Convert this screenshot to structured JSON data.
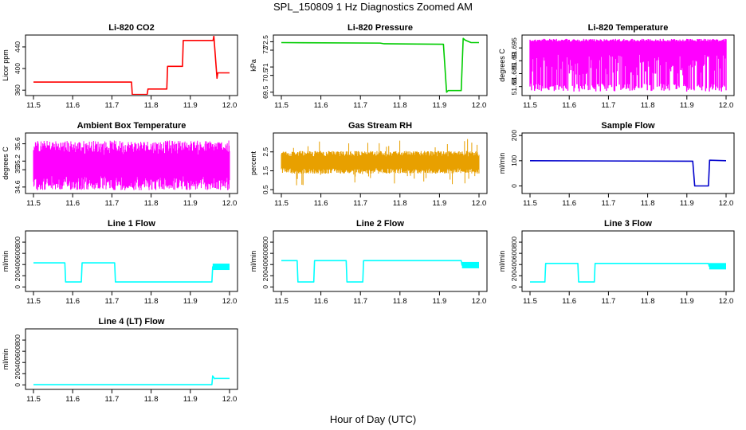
{
  "figure": {
    "title": "SPL_150809  1 Hz Diagnostics Zoomed AM",
    "xlabel": "Hour of Day (UTC)"
  },
  "chart_data": [
    {
      "type": "line",
      "title": "Li-820 CO2",
      "ylabel": "Licor ppm",
      "color": "#ff0000",
      "xlim": [
        11.5,
        12.0
      ],
      "ylim": [
        350,
        462
      ],
      "xticks": [
        "11.5",
        "11.6",
        "11.7",
        "11.8",
        "11.9",
        "12.0"
      ],
      "yticks": [
        360,
        400,
        440
      ],
      "series": [
        {
          "x": [
            11.5,
            11.75,
            11.752,
            11.79,
            11.792,
            11.84,
            11.842,
            11.88,
            11.882,
            11.958,
            11.96,
            11.968,
            11.97,
            12.0
          ],
          "y": [
            375,
            375,
            352,
            352,
            362,
            362,
            404,
            404,
            452,
            452,
            460,
            382,
            392,
            392
          ]
        }
      ]
    },
    {
      "type": "line",
      "title": "Li-820 Pressure",
      "ylabel": "kPa",
      "color": "#00cc00",
      "xlim": [
        11.5,
        12.0
      ],
      "ylim": [
        69.3,
        72.9
      ],
      "xticks": [
        "11.5",
        "11.6",
        "11.7",
        "11.8",
        "11.9",
        "12.0"
      ],
      "yticks": [
        69.5,
        70.5,
        71.0,
        72.0,
        72.5
      ],
      "series": [
        {
          "x": [
            11.5,
            11.75,
            11.76,
            11.91,
            11.918,
            11.922,
            11.955,
            11.96,
            11.965,
            11.98,
            12.0
          ],
          "y": [
            72.45,
            72.42,
            72.38,
            72.35,
            69.5,
            69.6,
            69.6,
            72.7,
            72.6,
            72.45,
            72.45
          ]
        }
      ]
    },
    {
      "type": "line",
      "title": "Li-820 Temperature",
      "ylabel": "degrees C",
      "color": "#ff00ff",
      "xlim": [
        11.5,
        12.0
      ],
      "ylim": [
        51.6765,
        51.7
      ],
      "xticks": [
        "11.5",
        "11.6",
        "11.7",
        "11.8",
        "11.9",
        "12.0"
      ],
      "yticks": [
        51.68,
        51.685,
        51.69,
        51.695
      ],
      "series": [
        {
          "x": [
            11.5,
            12.0
          ],
          "y": [
            51.678,
            51.6985
          ]
        }
      ]
    },
    {
      "type": "line",
      "title": "Ambient Box Temperature",
      "ylabel": "degrees C",
      "color": "#ff00ff",
      "xlim": [
        11.5,
        12.0
      ],
      "ylim": [
        34.45,
        35.85
      ],
      "xticks": [
        "11.5",
        "11.6",
        "11.7",
        "11.8",
        "11.9",
        "12.0"
      ],
      "yticks": [
        34.6,
        35.0,
        35.2,
        35.6
      ],
      "series": [
        {
          "x": [
            11.5,
            12.0
          ],
          "y": [
            34.5,
            35.7
          ]
        }
      ]
    },
    {
      "type": "line",
      "title": "Gas Stream RH",
      "ylabel": "percent",
      "color": "#e8a000",
      "xlim": [
        11.5,
        12.0
      ],
      "ylim": [
        0.3,
        3.5
      ],
      "xticks": [
        "11.5",
        "11.6",
        "11.7",
        "11.8",
        "11.9",
        "12.0"
      ],
      "yticks": [
        0.5,
        1.5,
        2.5
      ],
      "series": [
        {
          "x": [
            11.5,
            12.0
          ],
          "y": [
            0.7,
            3.2
          ]
        }
      ]
    },
    {
      "type": "line",
      "title": "Sample Flow",
      "ylabel": "ml/min",
      "color": "#0000cc",
      "xlim": [
        11.5,
        12.0
      ],
      "ylim": [
        -30,
        210
      ],
      "xticks": [
        "11.5",
        "11.6",
        "11.7",
        "11.8",
        "11.9",
        "12.0"
      ],
      "yticks": [
        0,
        100,
        200
      ],
      "series": [
        {
          "x": [
            11.5,
            11.915,
            11.92,
            11.955,
            11.958,
            12.0
          ],
          "y": [
            100,
            98,
            0,
            0,
            102,
            100
          ]
        }
      ]
    },
    {
      "type": "line",
      "title": "Line 1 Flow",
      "ylabel": "ml/min",
      "color": "#00ffff",
      "xlim": [
        11.5,
        12.0
      ],
      "ylim": [
        -80,
        1000
      ],
      "xticks": [
        "11.5",
        "11.6",
        "11.7",
        "11.8",
        "11.9",
        "12.0"
      ],
      "yticks": [
        0,
        200,
        400,
        600,
        800
      ],
      "series": [
        {
          "x": [
            11.5,
            11.58,
            11.582,
            11.622,
            11.624,
            11.707,
            11.709,
            11.955,
            11.957,
            12.0
          ],
          "y": [
            430,
            430,
            90,
            90,
            430,
            430,
            90,
            90,
            360,
            360
          ]
        }
      ]
    },
    {
      "type": "line",
      "title": "Line 2 Flow",
      "ylabel": "ml/min",
      "color": "#00ffff",
      "xlim": [
        11.5,
        12.0
      ],
      "ylim": [
        -80,
        1000
      ],
      "xticks": [
        "11.5",
        "11.6",
        "11.7",
        "11.8",
        "11.9",
        "12.0"
      ],
      "yticks": [
        0,
        200,
        400,
        600,
        800
      ],
      "series": [
        {
          "x": [
            11.5,
            11.54,
            11.542,
            11.582,
            11.584,
            11.664,
            11.666,
            11.706,
            11.708,
            11.955,
            11.957,
            12.0
          ],
          "y": [
            470,
            470,
            90,
            90,
            470,
            470,
            90,
            90,
            470,
            470,
            390,
            390
          ]
        }
      ]
    },
    {
      "type": "line",
      "title": "Line 3 Flow",
      "ylabel": "ml/min",
      "color": "#00ffff",
      "xlim": [
        11.5,
        12.0
      ],
      "ylim": [
        -80,
        1000
      ],
      "xticks": [
        "11.5",
        "11.6",
        "11.7",
        "11.8",
        "11.9",
        "12.0"
      ],
      "yticks": [
        0,
        200,
        400,
        600,
        800
      ],
      "series": [
        {
          "x": [
            11.5,
            11.538,
            11.54,
            11.622,
            11.624,
            11.664,
            11.666,
            11.955,
            11.957,
            12.0
          ],
          "y": [
            90,
            90,
            420,
            420,
            90,
            90,
            420,
            420,
            370,
            370
          ]
        }
      ]
    },
    {
      "type": "line",
      "title": "Line 4 (LT) Flow",
      "ylabel": "ml/min",
      "color": "#00ffff",
      "xlim": [
        11.5,
        12.0
      ],
      "ylim": [
        -80,
        1000
      ],
      "xticks": [
        "11.5",
        "11.6",
        "11.7",
        "11.8",
        "11.9",
        "12.0"
      ],
      "yticks": [
        0,
        200,
        400,
        600,
        800
      ],
      "series": [
        {
          "x": [
            11.5,
            11.955,
            11.957,
            11.962,
            11.965,
            12.0
          ],
          "y": [
            5,
            5,
            160,
            110,
            115,
            115
          ]
        }
      ]
    }
  ]
}
